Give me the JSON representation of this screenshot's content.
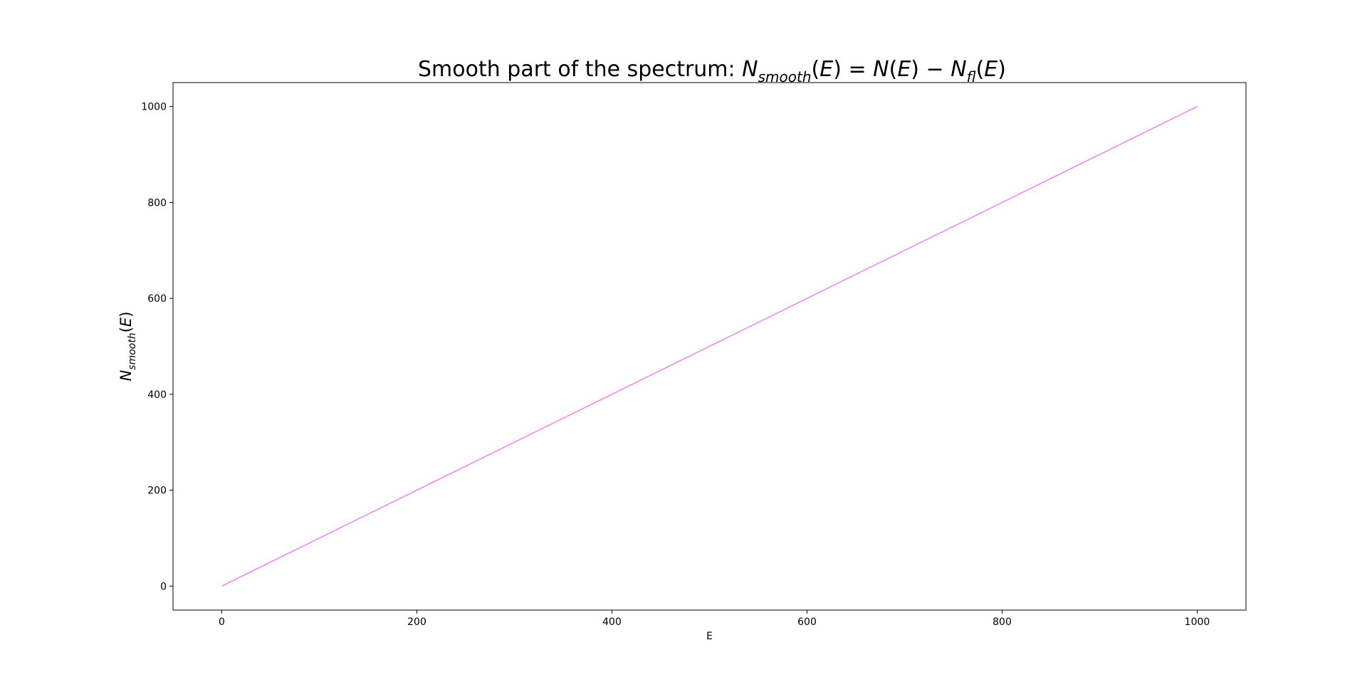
{
  "chart_data": {
    "type": "line",
    "title": {
      "prefix": "Smooth part of the spectrum: ",
      "formula": "N_smooth(E) = N(E) − N_fl(E)"
    },
    "xlabel": "E",
    "ylabel": "N_smooth(E)",
    "xlim": [
      -50,
      1050
    ],
    "ylim": [
      -50,
      1050
    ],
    "x_ticks": [
      0,
      200,
      400,
      600,
      800,
      1000
    ],
    "y_ticks": [
      0,
      200,
      400,
      600,
      800,
      1000
    ],
    "x_tick_labels": [
      "0",
      "200",
      "400",
      "600",
      "800",
      "1000"
    ],
    "y_tick_labels": [
      "0",
      "200",
      "400",
      "600",
      "800",
      "1000"
    ],
    "grid": false,
    "legend": "none",
    "series": [
      {
        "color": "#ee82ee",
        "x": [
          0,
          1000
        ],
        "y": [
          0,
          1000
        ]
      }
    ]
  }
}
